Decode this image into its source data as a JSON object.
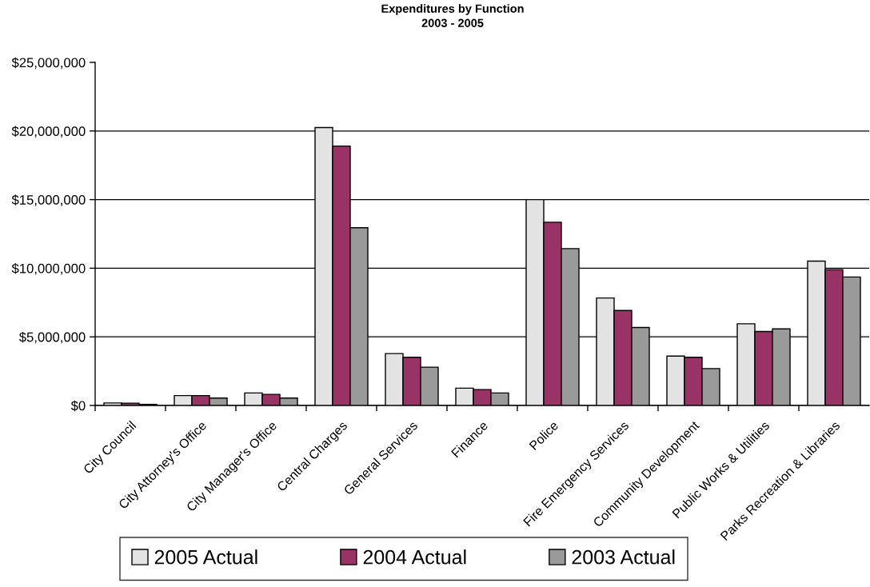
{
  "chart_data": {
    "type": "bar",
    "title": "Expenditures by Function",
    "subtitle": "2003 - 2005",
    "categories": [
      "City Council",
      "City Attorney's Office",
      "City Manager's Office",
      "Central Charges",
      "General Services",
      "Finance",
      "Police",
      "Fire Emergency Services",
      "Community Development",
      "Public Works & Utilities",
      "Parks Recreation & Libraries"
    ],
    "series": [
      {
        "name": "2005 Actual",
        "color": "#e3e3e3",
        "values": [
          180000,
          720000,
          910000,
          20250000,
          3780000,
          1260000,
          15000000,
          7830000,
          3600000,
          5950000,
          10520000
        ]
      },
      {
        "name": "2004 Actual",
        "color": "#993366",
        "values": [
          170000,
          720000,
          810000,
          18900000,
          3510000,
          1160000,
          13350000,
          6920000,
          3510000,
          5390000,
          9900000
        ]
      },
      {
        "name": "2003 Actual",
        "color": "#9a9a9a",
        "values": [
          80000,
          540000,
          540000,
          12950000,
          2790000,
          910000,
          11430000,
          5680000,
          2690000,
          5580000,
          9360000
        ]
      }
    ],
    "ylim": [
      0,
      25000000
    ],
    "yticks": [
      {
        "value": 0,
        "label": "$0"
      },
      {
        "value": 5000000,
        "label": "$5,000,000"
      },
      {
        "value": 10000000,
        "label": "$10,000,000"
      },
      {
        "value": 15000000,
        "label": "$15,000,000"
      },
      {
        "value": 20000000,
        "label": "$20,000,000"
      },
      {
        "value": 25000000,
        "label": "$25,000,000"
      }
    ],
    "grid": "y",
    "legend": "bottom"
  }
}
